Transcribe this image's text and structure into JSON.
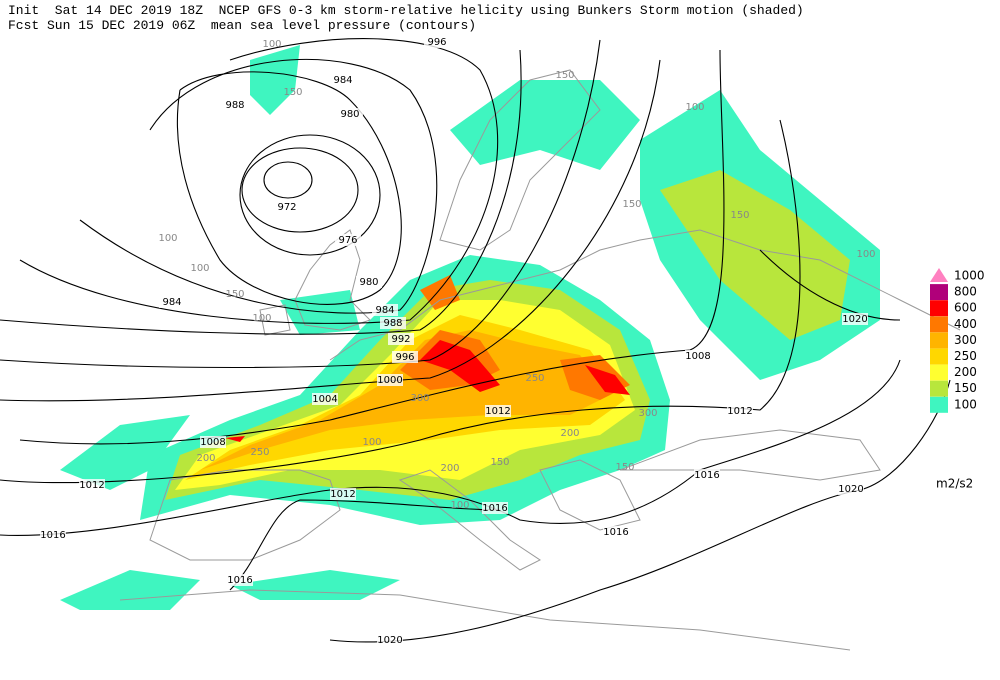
{
  "header": {
    "line1": "Init  Sat 14 DEC 2019 18Z  NCEP GFS 0-3 km storm-relative helicity using Bunkers Storm motion (shaded)",
    "line2": "Fcst Sun 15 DEC 2019 06Z  mean sea level pressure (contours)"
  },
  "legend": {
    "levels": [
      1000,
      800,
      600,
      400,
      300,
      250,
      200,
      150,
      100
    ],
    "colors": [
      "#ff80c0",
      "#b0007a",
      "#ff0000",
      "#ff7800",
      "#ffb400",
      "#ffd700",
      "#ffff30",
      "#b8e63c",
      "#3ff5c0"
    ],
    "unit": "m2/s2"
  },
  "isobar_labels": [
    "996",
    "984",
    "988",
    "980",
    "972",
    "976",
    "980",
    "984",
    "984",
    "988",
    "992",
    "996",
    "1000",
    "1004",
    "1008",
    "1012",
    "1012",
    "1012",
    "1016",
    "1016",
    "1016",
    "1016",
    "1020",
    "1016",
    "1012",
    "1008",
    "1020",
    "1020"
  ],
  "shade_labels": [
    "100",
    "150",
    "100",
    "150",
    "100",
    "150",
    "100",
    "100",
    "150",
    "200",
    "250",
    "300",
    "200",
    "150",
    "100",
    "300",
    "150",
    "200",
    "250",
    "100",
    "150",
    "100"
  ]
}
